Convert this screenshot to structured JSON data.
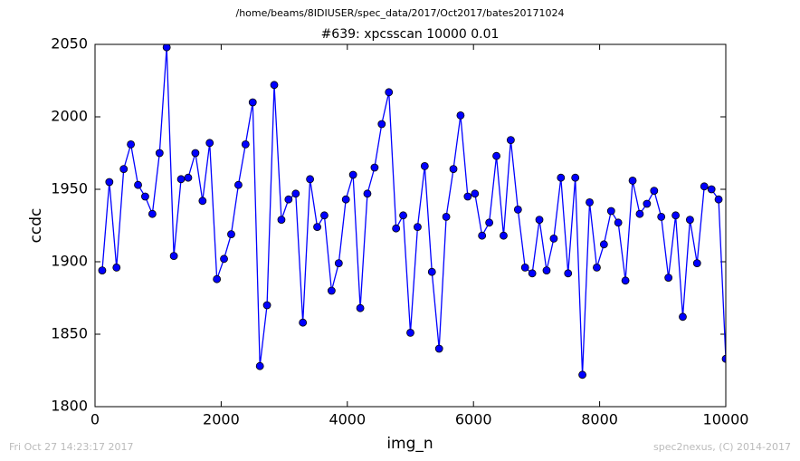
{
  "chart_data": {
    "type": "line",
    "suptitle": "/home/beams/8IDIUSER/spec_data/2017/Oct2017/bates20171024",
    "title": "#639: xpcsscan 10000 0.01",
    "xlabel": "img_n",
    "ylabel": "ccdc",
    "footer_left": "Fri Oct 27 14:23:17 2017",
    "footer_right": "spec2nexus, (C) 2014-2017",
    "x": [
      114,
      227,
      341,
      455,
      568,
      682,
      795,
      909,
      1023,
      1136,
      1250,
      1364,
      1477,
      1591,
      1705,
      1818,
      1932,
      2045,
      2159,
      2273,
      2386,
      2500,
      2614,
      2727,
      2841,
      2955,
      3068,
      3182,
      3295,
      3409,
      3523,
      3636,
      3750,
      3864,
      3977,
      4091,
      4205,
      4318,
      4432,
      4545,
      4659,
      4773,
      4886,
      5000,
      5114,
      5227,
      5341,
      5455,
      5568,
      5682,
      5795,
      5909,
      6023,
      6136,
      6250,
      6364,
      6477,
      6591,
      6705,
      6818,
      6932,
      7045,
      7159,
      7273,
      7386,
      7500,
      7614,
      7727,
      7841,
      7955,
      8068,
      8182,
      8295,
      8409,
      8523,
      8636,
      8750,
      8864,
      8977,
      9091,
      9205,
      9318,
      9432,
      9545,
      9659,
      9773,
      9886,
      10000
    ],
    "series": [
      {
        "color": "#0000ff",
        "values": [
          1894,
          1955,
          1896,
          1964,
          1981,
          1953,
          1945,
          1933,
          1975,
          2048,
          1904,
          1957,
          1958,
          1975,
          1942,
          1982,
          1888,
          1902,
          1919,
          1953,
          1981,
          2010,
          1828,
          1870,
          2022,
          1929,
          1943,
          1947,
          1858,
          1957,
          1924,
          1932,
          1880,
          1899,
          1943,
          1960,
          1868,
          1947,
          1965,
          1995,
          2017,
          1923,
          1932,
          1851,
          1924,
          1966,
          1893,
          1840,
          1931,
          1964,
          2001,
          1945,
          1947,
          1918,
          1927,
          1973,
          1918,
          1984,
          1936,
          1896,
          1892,
          1929,
          1894,
          1916,
          1958,
          1892,
          1958,
          1822,
          1941,
          1896,
          1912,
          1935,
          1927,
          1887,
          1956,
          1933,
          1940,
          1949,
          1931,
          1889,
          1932,
          1862,
          1929,
          1899,
          1952,
          1950,
          1943,
          1833
        ]
      }
    ],
    "xlim": [
      0,
      10000
    ],
    "xticks": [
      0,
      2000,
      4000,
      6000,
      8000,
      10000
    ],
    "ylim": [
      1800,
      2050
    ],
    "yticks": [
      1800,
      1850,
      1900,
      1950,
      2000,
      2050
    ],
    "grid": false
  }
}
